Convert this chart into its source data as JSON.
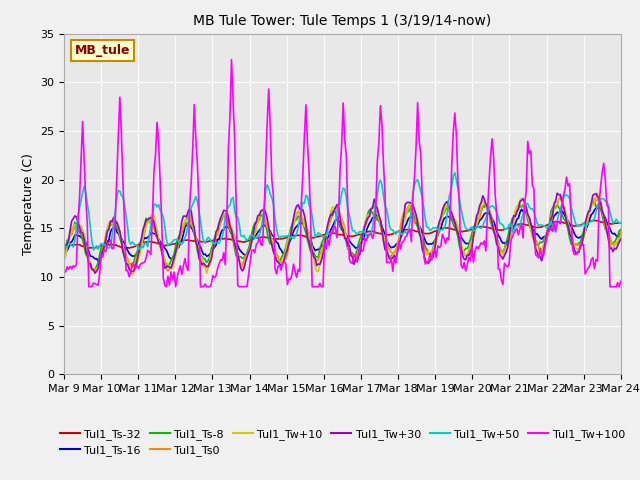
{
  "title": "MB Tule Tower: Tule Temps 1 (3/19/14-now)",
  "ylabel": "Temperature (C)",
  "ylim": [
    0,
    35
  ],
  "yticks": [
    0,
    5,
    10,
    15,
    20,
    25,
    30,
    35
  ],
  "xtick_labels": [
    "Mar 9",
    "Mar 10",
    "Mar 11",
    "Mar 12",
    "Mar 13",
    "Mar 14",
    "Mar 15",
    "Mar 16",
    "Mar 17",
    "Mar 18",
    "Mar 19",
    "Mar 20",
    "Mar 21",
    "Mar 22",
    "Mar 23",
    "Mar 24"
  ],
  "legend_label": "MB_tule",
  "series_order": [
    "Tul1_Ts-32",
    "Tul1_Ts-16",
    "Tul1_Ts-8",
    "Tul1_Ts0",
    "Tul1_Tw+10",
    "Tul1_Tw+30",
    "Tul1_Tw+50",
    "Tul1_Tw+100"
  ],
  "series": {
    "Tul1_Ts-32": {
      "color": "#cc0000",
      "lw": 1.2
    },
    "Tul1_Ts-16": {
      "color": "#0000cc",
      "lw": 1.2
    },
    "Tul1_Ts-8": {
      "color": "#00bb00",
      "lw": 1.2
    },
    "Tul1_Ts0": {
      "color": "#ff8800",
      "lw": 1.2
    },
    "Tul1_Tw+10": {
      "color": "#cccc00",
      "lw": 1.2
    },
    "Tul1_Tw+30": {
      "color": "#9900cc",
      "lw": 1.2
    },
    "Tul1_Tw+50": {
      "color": "#00cccc",
      "lw": 1.2
    },
    "Tul1_Tw+100": {
      "color": "#ff00ff",
      "lw": 1.2
    }
  },
  "fig_bg": "#f0f0f0",
  "plot_bg": "#e8e8e8",
  "grid_color": "#ffffff",
  "legend_box_fc": "#ffffcc",
  "legend_box_ec": "#cc8800",
  "legend_text_color": "#880000"
}
